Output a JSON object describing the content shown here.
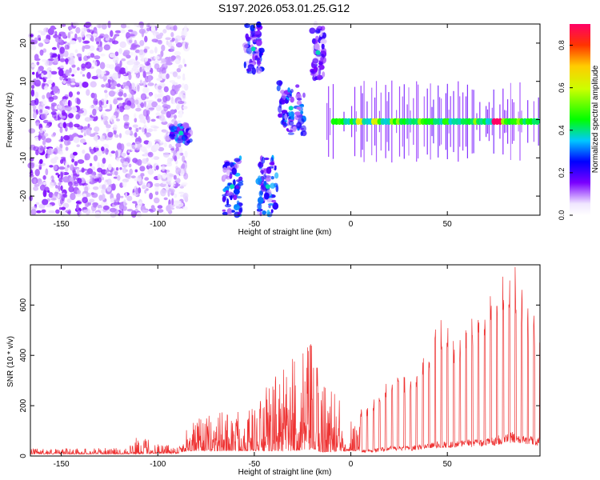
{
  "title": "S197.2026.053.01.25.G12",
  "chart_data": [
    {
      "type": "heatmap",
      "title": "S197.2026.053.01.25.G12",
      "xlabel": "Height of straight line (km)",
      "ylabel": "Frequency (Hz)",
      "xlim": [
        -166,
        98
      ],
      "ylim": [
        -25,
        25
      ],
      "xticks": [
        -150,
        -100,
        -50,
        0,
        50
      ],
      "yticks": [
        -20,
        -10,
        0,
        10,
        20
      ],
      "colorbar": {
        "label": "Normalized spectral amplitude",
        "range": [
          0.0,
          0.9
        ],
        "ticks": [
          "0.0",
          "0.2",
          "0.4",
          "0.6",
          "0.8"
        ],
        "tick_values": [
          0.0,
          0.2,
          0.4,
          0.6,
          0.8
        ]
      },
      "features": [
        {
          "name": "diffuse-noise",
          "x_range": [
            -166,
            -85
          ],
          "y_range": [
            -25,
            25
          ],
          "amplitude": 0.15
        },
        {
          "name": "burst",
          "x_range": [
            -93,
            -83
          ],
          "y_range": [
            -6,
            -1
          ],
          "amplitude": 0.3
        },
        {
          "name": "burst",
          "x_range": [
            -66,
            -57
          ],
          "y_range": [
            -25,
            -10
          ],
          "amplitude": 0.3
        },
        {
          "name": "burst",
          "x_range": [
            -55,
            -46
          ],
          "y_range": [
            12,
            25
          ],
          "amplitude": 0.25
        },
        {
          "name": "burst",
          "x_range": [
            -48,
            -38
          ],
          "y_range": [
            -25,
            -10
          ],
          "amplitude": 0.3
        },
        {
          "name": "burst",
          "x_range": [
            -38,
            -24
          ],
          "y_range": [
            -4,
            10
          ],
          "amplitude": 0.3
        },
        {
          "name": "burst",
          "x_range": [
            -20,
            -14
          ],
          "y_range": [
            10,
            25
          ],
          "amplitude": 0.2
        },
        {
          "name": "carrier",
          "x_range": [
            -15,
            98
          ],
          "y_center": -0.5,
          "amplitude_peak": 0.9,
          "amplitude_peak_at": 76
        }
      ]
    },
    {
      "type": "line",
      "xlabel": "Height of straight line (km)",
      "ylabel": "SNR (10 * v/v)",
      "xlim": [
        -166,
        98
      ],
      "ylim": [
        0,
        760
      ],
      "xticks": [
        -150,
        -100,
        -50,
        0,
        50
      ],
      "yticks": [
        0,
        200,
        400,
        600
      ],
      "color": "#ee3333",
      "envelope": {
        "x": [
          -166,
          -120,
          -110,
          -100,
          -90,
          -85,
          -75,
          -65,
          -50,
          -40,
          -30,
          -20,
          -15,
          0,
          10,
          20,
          30,
          40,
          45,
          55,
          60,
          70,
          75,
          80,
          85,
          90,
          98
        ],
        "upper": [
          30,
          32,
          80,
          60,
          40,
          130,
          160,
          190,
          200,
          320,
          390,
          450,
          350,
          160,
          210,
          330,
          310,
          420,
          570,
          460,
          560,
          590,
          700,
          720,
          760,
          640,
          520
        ],
        "lower": [
          8,
          8,
          8,
          10,
          10,
          20,
          20,
          20,
          20,
          20,
          20,
          25,
          15,
          20,
          20,
          30,
          30,
          40,
          45,
          45,
          50,
          55,
          60,
          70,
          75,
          70,
          55
        ]
      }
    }
  ]
}
